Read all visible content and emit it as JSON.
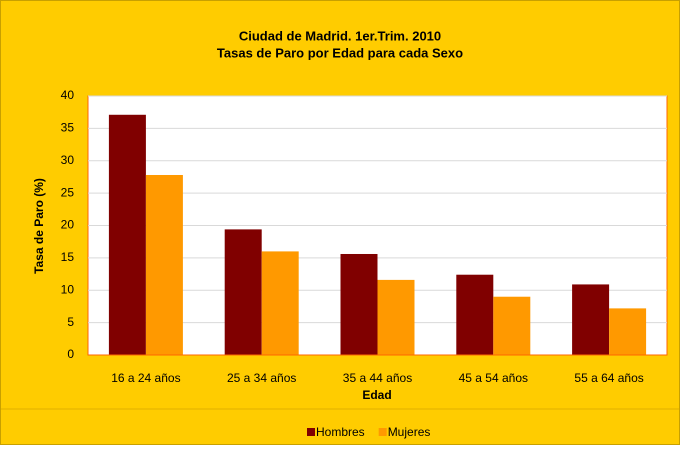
{
  "chart_data": {
    "type": "bar",
    "title": "Ciudad de Madrid. 1er.Trim. 2010",
    "subtitle": "Tasas de Paro por Edad para cada Sexo",
    "x_label": "Edad",
    "y_label": "Tasa de Paro (%)",
    "categories": [
      "16 a 24 años",
      "25 a 34 años",
      "35 a 44 años",
      "45 a 54 años",
      "55 a 64 años"
    ],
    "series": [
      {
        "name": "Hombres",
        "color": "#800000",
        "values": [
          37.1,
          19.4,
          15.6,
          12.4,
          10.9
        ]
      },
      {
        "name": "Mujeres",
        "color": "#FF9900",
        "values": [
          27.8,
          16.0,
          11.6,
          9.0,
          7.2
        ]
      }
    ],
    "ylim": [
      0,
      40
    ],
    "yticks": [
      0,
      5,
      10,
      15,
      20,
      25,
      30,
      35,
      40
    ],
    "grid": true,
    "legend": "bottom"
  }
}
